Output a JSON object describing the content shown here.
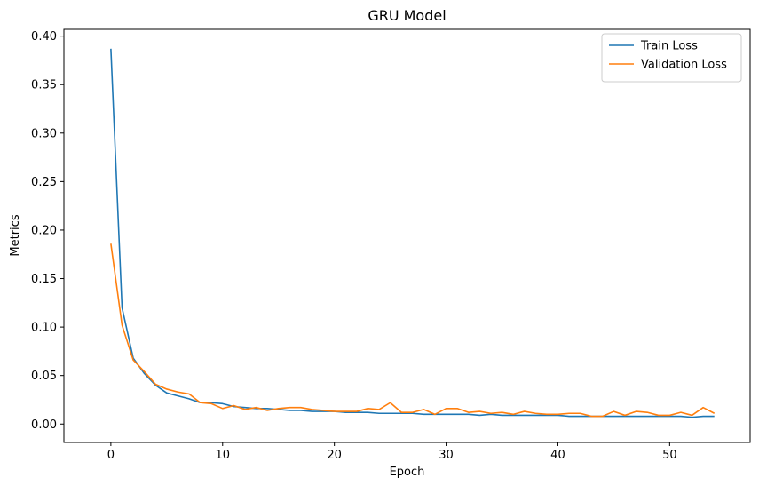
{
  "chart_data": {
    "type": "line",
    "title": "GRU Model",
    "xlabel": "Epoch",
    "ylabel": "Metrics",
    "xlim": [
      -4.2,
      57.2
    ],
    "ylim": [
      -0.019,
      0.407
    ],
    "xticks": [
      0,
      10,
      20,
      30,
      40,
      50
    ],
    "xtick_labels": [
      "0",
      "10",
      "20",
      "30",
      "40",
      "50"
    ],
    "yticks": [
      0.0,
      0.05,
      0.1,
      0.15,
      0.2,
      0.25,
      0.3,
      0.35,
      0.4
    ],
    "ytick_labels": [
      "0.00",
      "0.05",
      "0.10",
      "0.15",
      "0.20",
      "0.25",
      "0.30",
      "0.35",
      "0.40"
    ],
    "grid": false,
    "legend_position": "top-right",
    "series": [
      {
        "name": "Train Loss",
        "color": "#1f77b4",
        "x": [
          0,
          1,
          2,
          3,
          4,
          5,
          6,
          7,
          8,
          9,
          10,
          11,
          12,
          13,
          14,
          15,
          16,
          17,
          18,
          19,
          20,
          21,
          22,
          23,
          24,
          25,
          26,
          27,
          28,
          29,
          30,
          31,
          32,
          33,
          34,
          35,
          36,
          37,
          38,
          39,
          40,
          41,
          42,
          43,
          44,
          45,
          46,
          47,
          48,
          49,
          50,
          51,
          52,
          53,
          54
        ],
        "y": [
          0.387,
          0.12,
          0.068,
          0.052,
          0.04,
          0.032,
          0.029,
          0.026,
          0.022,
          0.022,
          0.021,
          0.018,
          0.017,
          0.016,
          0.016,
          0.015,
          0.014,
          0.014,
          0.013,
          0.013,
          0.013,
          0.012,
          0.012,
          0.012,
          0.011,
          0.011,
          0.011,
          0.011,
          0.01,
          0.01,
          0.01,
          0.01,
          0.01,
          0.009,
          0.01,
          0.009,
          0.009,
          0.009,
          0.009,
          0.009,
          0.009,
          0.008,
          0.008,
          0.008,
          0.008,
          0.008,
          0.008,
          0.008,
          0.008,
          0.008,
          0.008,
          0.008,
          0.007,
          0.008,
          0.008
        ]
      },
      {
        "name": "Validation Loss",
        "color": "#ff7f0e",
        "x": [
          0,
          1,
          2,
          3,
          4,
          5,
          6,
          7,
          8,
          9,
          10,
          11,
          12,
          13,
          14,
          15,
          16,
          17,
          18,
          19,
          20,
          21,
          22,
          23,
          24,
          25,
          26,
          27,
          28,
          29,
          30,
          31,
          32,
          33,
          34,
          35,
          36,
          37,
          38,
          39,
          40,
          41,
          42,
          43,
          44,
          45,
          46,
          47,
          48,
          49,
          50,
          51,
          52,
          53,
          54
        ],
        "y": [
          0.186,
          0.102,
          0.066,
          0.054,
          0.041,
          0.036,
          0.033,
          0.031,
          0.022,
          0.021,
          0.016,
          0.019,
          0.015,
          0.017,
          0.014,
          0.016,
          0.017,
          0.017,
          0.015,
          0.014,
          0.013,
          0.013,
          0.013,
          0.016,
          0.015,
          0.022,
          0.012,
          0.012,
          0.015,
          0.01,
          0.016,
          0.016,
          0.012,
          0.013,
          0.011,
          0.012,
          0.01,
          0.013,
          0.011,
          0.01,
          0.01,
          0.011,
          0.011,
          0.008,
          0.008,
          0.013,
          0.009,
          0.013,
          0.012,
          0.009,
          0.009,
          0.012,
          0.009,
          0.017,
          0.011
        ]
      }
    ]
  }
}
